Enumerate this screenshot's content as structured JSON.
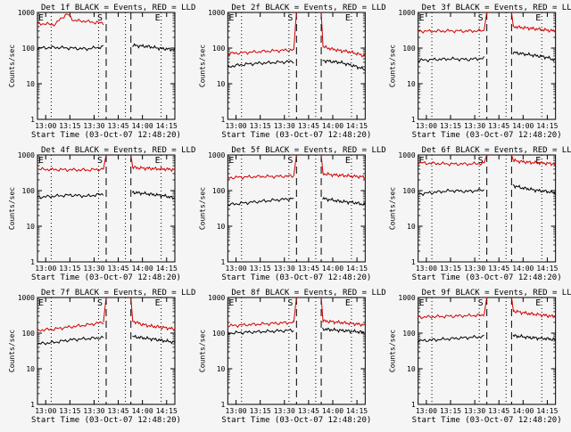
{
  "chart_data": [
    {
      "type": "line",
      "title": "Det 1f BLACK = Events, RED = LLD",
      "ylabel": "Counts/sec",
      "xlabel": "Start Time (03-Oct-07 12:48:20)",
      "yscale": "log",
      "ylim": [
        1,
        1000
      ],
      "x_ticks": [
        "13:00",
        "13:15",
        "13:30",
        "13:45",
        "14:00",
        "14:15"
      ],
      "flags": [
        {
          "label": "E",
          "pos": "left"
        },
        {
          "label": "S",
          "pos": "gap_start"
        },
        {
          "label": "E",
          "pos": "right"
        }
      ],
      "series": [
        {
          "color": "#d40000",
          "values": [
            500,
            480,
            470,
            460,
            700,
            900,
            600,
            580,
            570,
            540,
            520,
            500
          ]
        },
        {
          "color": "#000000",
          "values": [
            100,
            105,
            100,
            95,
            110,
            0,
            120,
            115,
            110,
            100,
            95,
            90
          ]
        }
      ]
    },
    {
      "type": "line",
      "title": "Det 2f BLACK = Events, RED = LLD",
      "ylabel": "Counts/sec",
      "xlabel": "Start Time (03-Oct-07 12:48:20)",
      "yscale": "log",
      "ylim": [
        1,
        1000
      ],
      "x_ticks": [
        "13:00",
        "13:15",
        "13:30",
        "13:45",
        "14:00",
        "14:15"
      ],
      "flags": [
        {
          "label": "E",
          "pos": "left"
        },
        {
          "label": "S",
          "pos": "gap_start"
        },
        {
          "label": "E",
          "pos": "right"
        }
      ],
      "series": [
        {
          "color": "#d40000",
          "values": [
            70,
            75,
            80,
            85,
            90,
            0,
            110,
            95,
            85,
            80,
            70,
            60
          ]
        },
        {
          "color": "#000000",
          "values": [
            30,
            35,
            38,
            40,
            42,
            0,
            45,
            42,
            40,
            35,
            30,
            25
          ]
        }
      ]
    },
    {
      "type": "line",
      "title": "Det 3f BLACK = Events, RED = LLD",
      "ylabel": "Counts/sec",
      "xlabel": "Start Time (03-Oct-07 12:48:20)",
      "yscale": "log",
      "ylim": [
        1,
        1000
      ],
      "x_ticks": [
        "13:00",
        "13:15",
        "13:30",
        "13:45",
        "14:00",
        "14:15"
      ],
      "flags": [
        {
          "label": "E",
          "pos": "left"
        },
        {
          "label": "S",
          "pos": "gap_start"
        },
        {
          "label": "E",
          "pos": "right"
        }
      ],
      "series": [
        {
          "color": "#d40000",
          "values": [
            300,
            300,
            305,
            300,
            310,
            0,
            400,
            380,
            360,
            340,
            320,
            300
          ]
        },
        {
          "color": "#000000",
          "values": [
            45,
            48,
            50,
            48,
            52,
            0,
            75,
            70,
            65,
            60,
            55,
            45
          ]
        }
      ]
    },
    {
      "type": "line",
      "title": "Det 4f BLACK = Events, RED = LLD",
      "ylabel": "Counts/sec",
      "xlabel": "Start Time (03-Oct-07 12:48:20)",
      "yscale": "log",
      "ylim": [
        1,
        1000
      ],
      "x_ticks": [
        "13:00",
        "13:15",
        "13:30",
        "13:45",
        "14:00",
        "14:15"
      ],
      "flags": [
        {
          "label": "E",
          "pos": "left"
        },
        {
          "label": "S",
          "pos": "gap_start"
        },
        {
          "label": "E",
          "pos": "right"
        }
      ],
      "series": [
        {
          "color": "#d40000",
          "values": [
            400,
            390,
            385,
            380,
            400,
            0,
            450,
            430,
            420,
            410,
            400,
            390
          ]
        },
        {
          "color": "#000000",
          "values": [
            65,
            70,
            75,
            70,
            80,
            0,
            90,
            85,
            80,
            75,
            70,
            60
          ]
        }
      ]
    },
    {
      "type": "line",
      "title": "Det 5f BLACK = Events, RED = LLD",
      "ylabel": "Counts/sec",
      "xlabel": "Start Time (03-Oct-07 12:48:20)",
      "yscale": "log",
      "ylim": [
        1,
        1000
      ],
      "x_ticks": [
        "13:00",
        "13:15",
        "13:30",
        "13:45",
        "14:00",
        "14:15"
      ],
      "flags": [
        {
          "label": "E",
          "pos": "left"
        },
        {
          "label": "S",
          "pos": "gap_start"
        },
        {
          "label": "E",
          "pos": "right"
        }
      ],
      "series": [
        {
          "color": "#d40000",
          "values": [
            230,
            240,
            250,
            250,
            260,
            0,
            300,
            280,
            270,
            260,
            250,
            240
          ]
        },
        {
          "color": "#000000",
          "values": [
            40,
            45,
            50,
            55,
            60,
            0,
            60,
            55,
            50,
            48,
            45,
            40
          ]
        }
      ]
    },
    {
      "type": "line",
      "title": "Det 6f BLACK = Events, RED = LLD",
      "ylabel": "Counts/sec",
      "xlabel": "Start Time (03-Oct-07 12:48:20)",
      "yscale": "log",
      "ylim": [
        1,
        1000
      ],
      "x_ticks": [
        "13:00",
        "13:15",
        "13:30",
        "13:45",
        "14:00",
        "14:15"
      ],
      "flags": [
        {
          "label": "E",
          "pos": "left"
        },
        {
          "label": "S",
          "pos": "gap_start"
        },
        {
          "label": "E",
          "pos": "right"
        }
      ],
      "series": [
        {
          "color": "#d40000",
          "values": [
            600,
            580,
            560,
            560,
            580,
            0,
            700,
            650,
            620,
            600,
            580,
            560
          ]
        },
        {
          "color": "#000000",
          "values": [
            80,
            90,
            100,
            95,
            105,
            0,
            140,
            120,
            110,
            100,
            95,
            85
          ]
        }
      ]
    },
    {
      "type": "line",
      "title": "Det 7f BLACK = Events, RED = LLD",
      "ylabel": "Counts/sec",
      "xlabel": "Start Time (03-Oct-07 12:48:20)",
      "yscale": "log",
      "ylim": [
        1,
        1000
      ],
      "x_ticks": [
        "13:00",
        "13:15",
        "13:30",
        "13:45",
        "14:00",
        "14:15"
      ],
      "flags": [
        {
          "label": "E",
          "pos": "left"
        },
        {
          "label": "S",
          "pos": "gap_start"
        },
        {
          "label": "E",
          "pos": "right"
        }
      ],
      "series": [
        {
          "color": "#d40000",
          "values": [
            120,
            130,
            150,
            170,
            200,
            0,
            220,
            180,
            160,
            150,
            140,
            130
          ]
        },
        {
          "color": "#000000",
          "values": [
            50,
            55,
            65,
            70,
            75,
            0,
            80,
            75,
            70,
            65,
            60,
            55
          ]
        }
      ]
    },
    {
      "type": "line",
      "title": "Det 8f BLACK = Events, RED = LLD",
      "ylabel": "Counts/sec",
      "xlabel": "Start Time (03-Oct-07 12:48:20)",
      "yscale": "log",
      "ylim": [
        1,
        1000
      ],
      "x_ticks": [
        "13:00",
        "13:15",
        "13:30",
        "13:45",
        "14:00",
        "14:15"
      ],
      "flags": [
        {
          "label": "E",
          "pos": "left"
        },
        {
          "label": "S",
          "pos": "gap_start"
        },
        {
          "label": "E",
          "pos": "right"
        }
      ],
      "series": [
        {
          "color": "#d40000",
          "values": [
            160,
            170,
            180,
            190,
            200,
            0,
            220,
            210,
            200,
            190,
            180,
            170
          ]
        },
        {
          "color": "#000000",
          "values": [
            100,
            105,
            110,
            115,
            120,
            0,
            130,
            125,
            120,
            115,
            110,
            105
          ]
        }
      ]
    },
    {
      "type": "line",
      "title": "Det 9f BLACK = Events, RED = LLD",
      "ylabel": "Counts/sec",
      "xlabel": "Start Time (03-Oct-07 12:48:20)",
      "yscale": "log",
      "ylim": [
        1,
        1000
      ],
      "x_ticks": [
        "13:00",
        "13:15",
        "13:30",
        "13:45",
        "14:00",
        "14:15"
      ],
      "flags": [
        {
          "label": "E",
          "pos": "left"
        },
        {
          "label": "S",
          "pos": "gap_start"
        },
        {
          "label": "E",
          "pos": "right"
        }
      ],
      "series": [
        {
          "color": "#d40000",
          "values": [
            280,
            290,
            300,
            310,
            320,
            0,
            420,
            380,
            350,
            330,
            310,
            290
          ]
        },
        {
          "color": "#000000",
          "values": [
            60,
            65,
            70,
            75,
            80,
            0,
            85,
            80,
            75,
            72,
            70,
            65
          ]
        }
      ]
    }
  ]
}
